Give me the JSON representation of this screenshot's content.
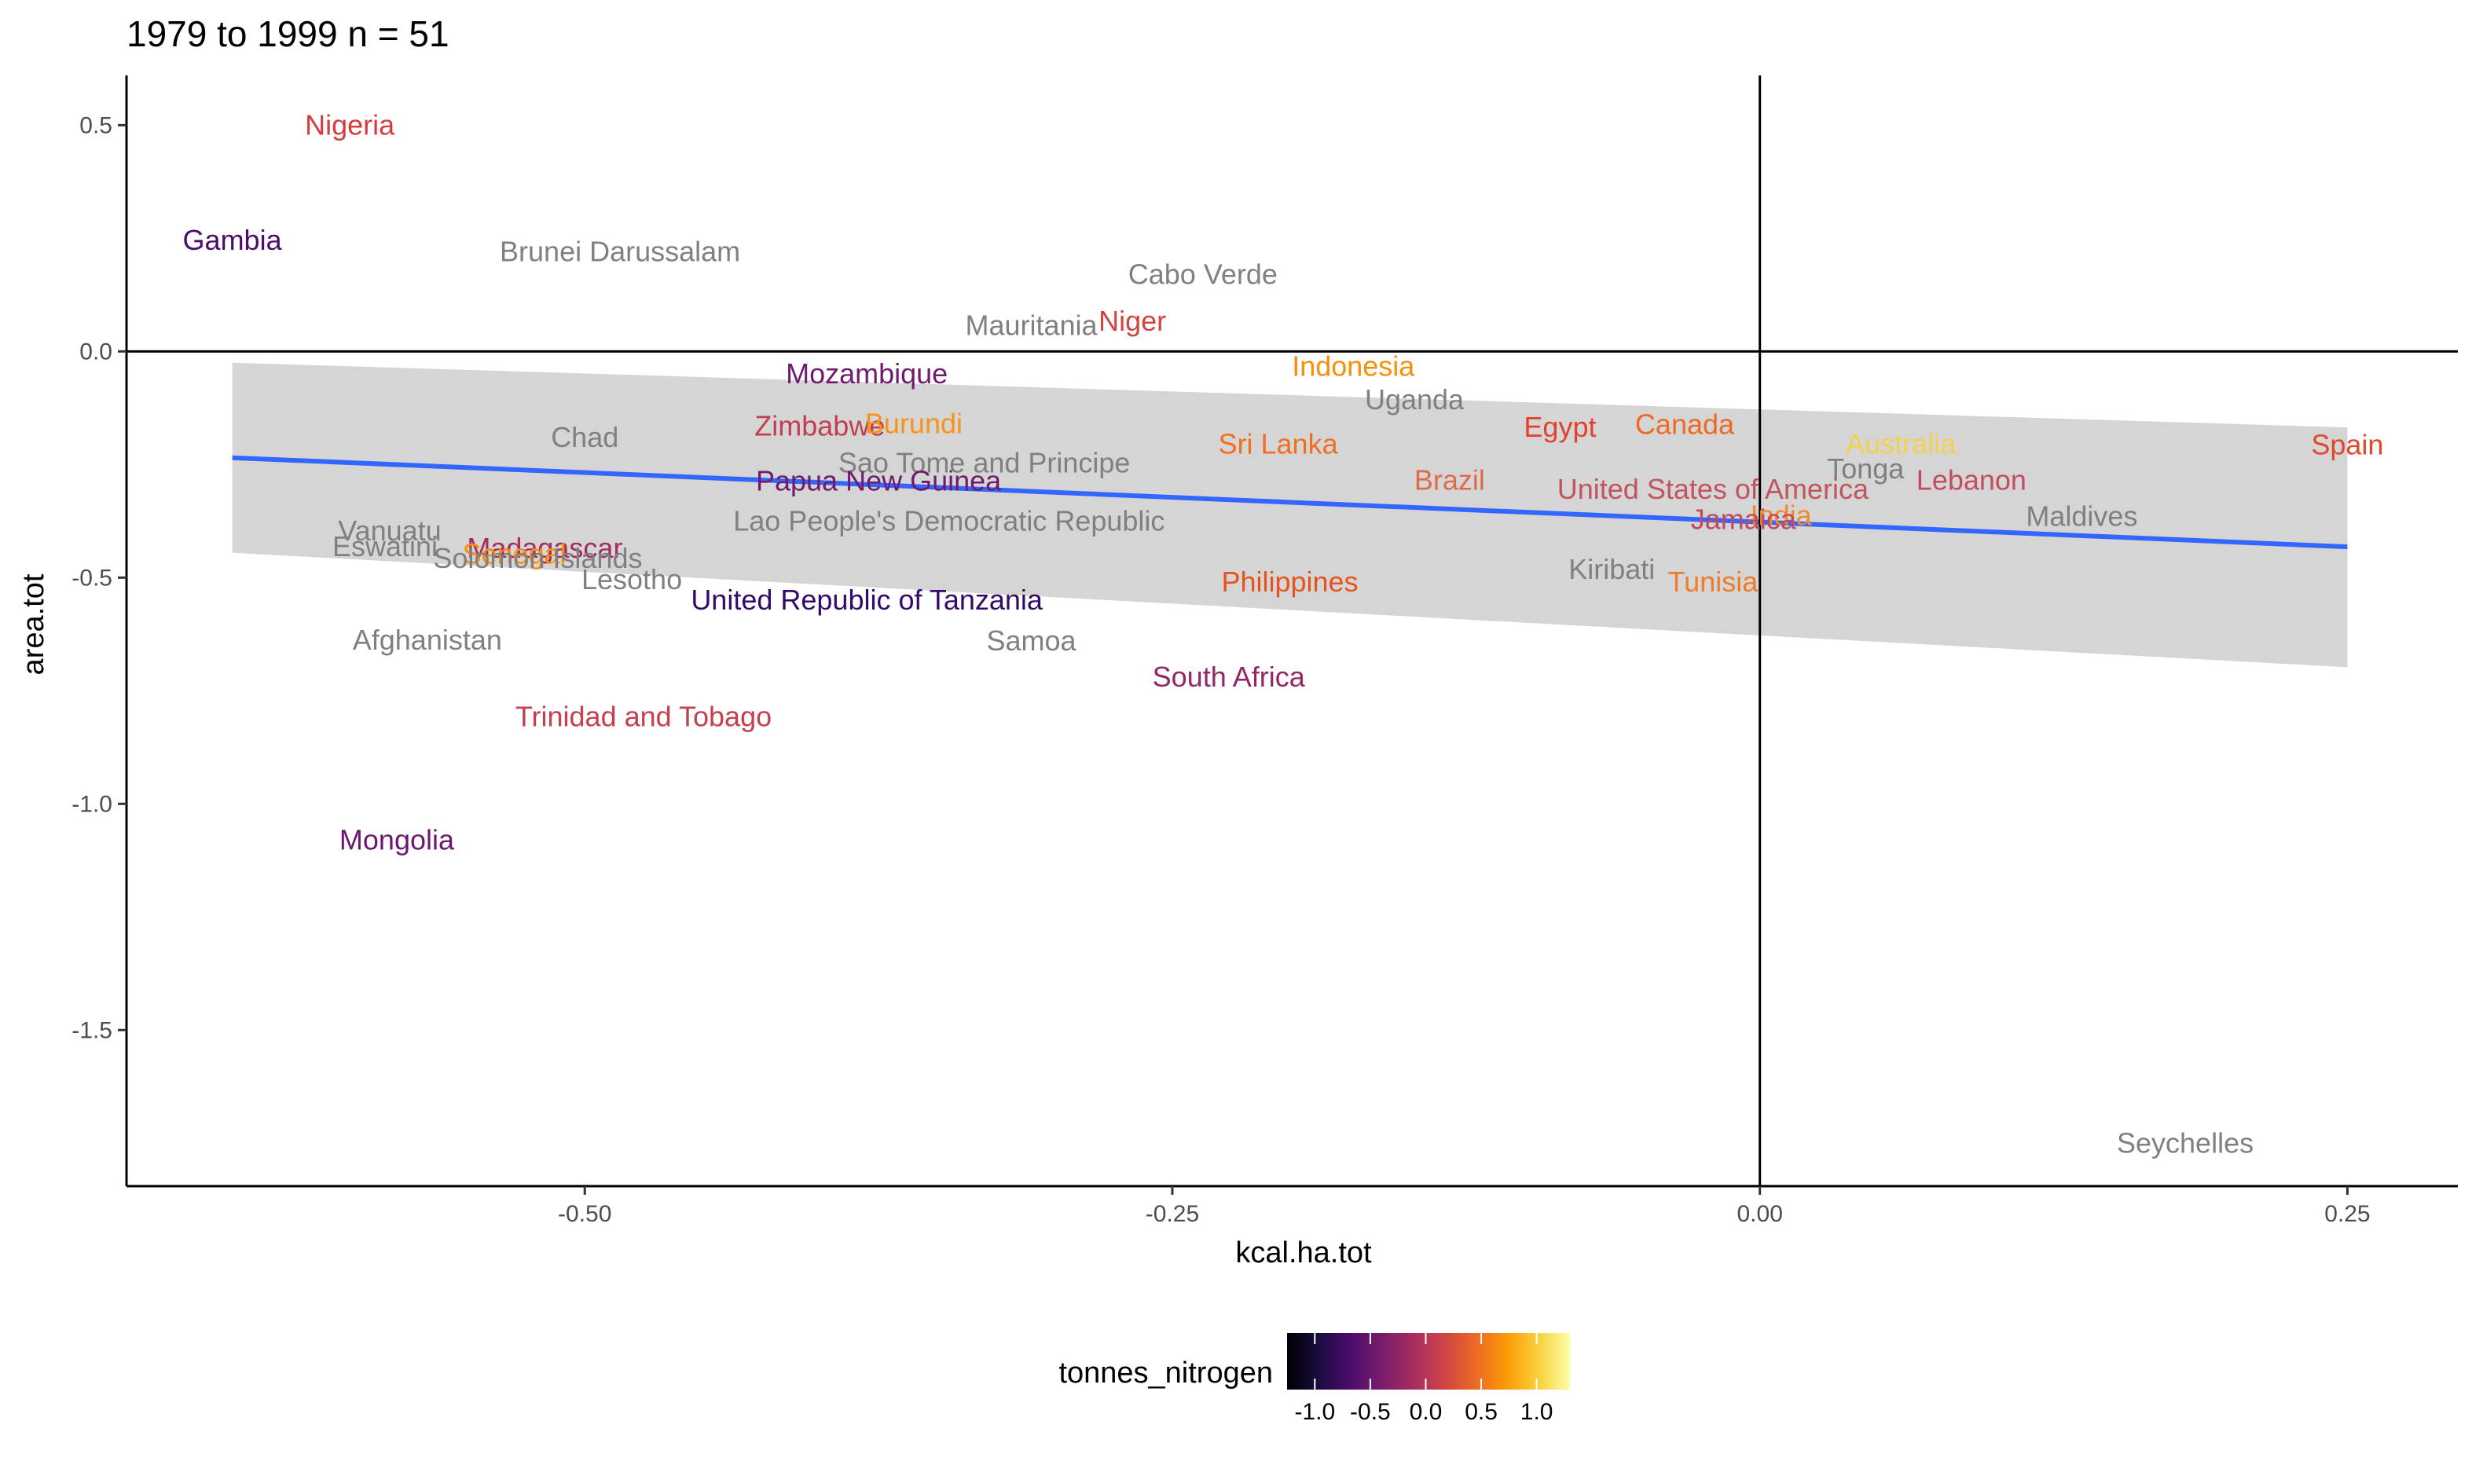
{
  "chart_data": {
    "type": "scatter",
    "title": "1979 to 1999 n =  51",
    "xlabel": "kcal.ha.tot",
    "ylabel": "area.tot",
    "xlim": [
      -0.695,
      0.297
    ],
    "ylim": [
      -1.845,
      0.61
    ],
    "x_ticks": [
      -0.5,
      -0.25,
      0.0,
      0.25
    ],
    "x_tick_labels": [
      "-0.50",
      "-0.25",
      "0.00",
      "0.25"
    ],
    "y_ticks": [
      0.5,
      0.0,
      -0.5,
      -1.0,
      -1.5
    ],
    "y_tick_labels": [
      "0.5",
      "0.0",
      "-0.5",
      "-1.0",
      "-1.5"
    ],
    "reference_lines": {
      "x": 0,
      "y": 0
    },
    "grid": false,
    "smooth": {
      "method": "linear",
      "color": "#3366FF",
      "x": [
        -0.65,
        0.25
      ],
      "y": [
        -0.235,
        -0.432
      ],
      "ci_lower": [
        -0.445,
        -0.698
      ],
      "ci_upper": [
        -0.025,
        -0.168
      ],
      "ci_color": "#d3d3d3"
    },
    "color_legend": {
      "title": "tonnes_nitrogen",
      "position": "bottom",
      "range": [
        -1.25,
        1.3
      ],
      "ticks": [
        -1.0,
        -0.5,
        0.0,
        0.5,
        1.0
      ],
      "tick_labels": [
        "-1.0",
        "-0.5",
        "0.0",
        "0.5",
        "1.0"
      ],
      "colors": [
        "#000004",
        "#1b0c41",
        "#4a0c6b",
        "#781c6d",
        "#a52c60",
        "#cf4446",
        "#ed6925",
        "#fb9b06",
        "#f7d13d",
        "#fcffa4"
      ]
    },
    "na_color": "#808080",
    "points": [
      {
        "label": "Nigeria",
        "x": -0.6,
        "y": 0.5,
        "color": "#d63c3c"
      },
      {
        "label": "Gambia",
        "x": -0.65,
        "y": 0.245,
        "color": "#4b0c6b"
      },
      {
        "label": "Brunei Darussalam",
        "x": -0.485,
        "y": 0.22,
        "color": "#808080"
      },
      {
        "label": "Cabo Verde",
        "x": -0.237,
        "y": 0.17,
        "color": "#808080"
      },
      {
        "label": "Mauritania",
        "x": -0.31,
        "y": 0.057,
        "color": "#808080"
      },
      {
        "label": "Niger",
        "x": -0.267,
        "y": 0.067,
        "color": "#d2443f"
      },
      {
        "label": "Mozambique",
        "x": -0.38,
        "y": -0.05,
        "color": "#711a6e"
      },
      {
        "label": "Indonesia",
        "x": -0.173,
        "y": -0.033,
        "color": "#f98e09"
      },
      {
        "label": "Uganda",
        "x": -0.147,
        "y": -0.107,
        "color": "#808080"
      },
      {
        "label": "Chad",
        "x": -0.5,
        "y": -0.19,
        "color": "#808080"
      },
      {
        "label": "Zimbabwe",
        "x": -0.4,
        "y": -0.165,
        "color": "#c13d50"
      },
      {
        "label": "Burundi",
        "x": -0.36,
        "y": -0.16,
        "color": "#f79316"
      },
      {
        "label": "Egypt",
        "x": -0.085,
        "y": -0.168,
        "color": "#e1412d"
      },
      {
        "label": "Canada",
        "x": -0.032,
        "y": -0.162,
        "color": "#ee6a24"
      },
      {
        "label": "Sri Lanka",
        "x": -0.205,
        "y": -0.205,
        "color": "#f26e21"
      },
      {
        "label": "Australia",
        "x": 0.06,
        "y": -0.205,
        "color": "#f1d14d"
      },
      {
        "label": "Spain",
        "x": 0.25,
        "y": -0.207,
        "color": "#e0492c"
      },
      {
        "label": "Sao Tome and Principe",
        "x": -0.33,
        "y": -0.247,
        "color": "#808080"
      },
      {
        "label": "Tonga",
        "x": 0.045,
        "y": -0.26,
        "color": "#808080"
      },
      {
        "label": "Lebanon",
        "x": 0.09,
        "y": -0.285,
        "color": "#c44c5e"
      },
      {
        "label": "Brazil",
        "x": -0.132,
        "y": -0.285,
        "color": "#de6a4a"
      },
      {
        "label": "Papua New Guinea",
        "x": -0.375,
        "y": -0.287,
        "color": "#711a6e"
      },
      {
        "label": "United States of America",
        "x": -0.02,
        "y": -0.305,
        "color": "#c1555f"
      },
      {
        "label": "Lao People's Democratic Republic",
        "x": -0.345,
        "y": -0.375,
        "color": "#808080"
      },
      {
        "label": "Maldives",
        "x": 0.137,
        "y": -0.365,
        "color": "#808080"
      },
      {
        "label": "India",
        "x": 0.009,
        "y": -0.363,
        "color": "#f18a2e"
      },
      {
        "label": "Jamaica",
        "x": -0.007,
        "y": -0.372,
        "color": "#c3495d"
      },
      {
        "label": "Vanuatu",
        "x": -0.583,
        "y": -0.397,
        "color": "#808080"
      },
      {
        "label": "Eswatini",
        "x": -0.585,
        "y": -0.432,
        "color": "#808080"
      },
      {
        "label": "Madagascar",
        "x": -0.517,
        "y": -0.435,
        "color": "#a52c60"
      },
      {
        "label": "Senegal",
        "x": -0.53,
        "y": -0.448,
        "color": "#f98e09"
      },
      {
        "label": "Solomon Islands",
        "x": -0.52,
        "y": -0.458,
        "color": "#808080"
      },
      {
        "label": "Lesotho",
        "x": -0.48,
        "y": -0.505,
        "color": "#808080"
      },
      {
        "label": "Kiribati",
        "x": -0.063,
        "y": -0.482,
        "color": "#808080"
      },
      {
        "label": "Philippines",
        "x": -0.2,
        "y": -0.51,
        "color": "#e5541e"
      },
      {
        "label": "Tunisia",
        "x": -0.02,
        "y": -0.51,
        "color": "#ef7c2a"
      },
      {
        "label": "United Republic of Tanzania",
        "x": -0.38,
        "y": -0.55,
        "color": "#35096a"
      },
      {
        "label": "Afghanistan",
        "x": -0.567,
        "y": -0.638,
        "color": "#808080"
      },
      {
        "label": "Samoa",
        "x": -0.31,
        "y": -0.64,
        "color": "#808080"
      },
      {
        "label": "South Africa",
        "x": -0.226,
        "y": -0.72,
        "color": "#932667"
      },
      {
        "label": "Trinidad and Tobago",
        "x": -0.475,
        "y": -0.808,
        "color": "#c73e4c"
      },
      {
        "label": "Mongolia",
        "x": -0.58,
        "y": -1.08,
        "color": "#6b186e"
      },
      {
        "label": "Seychelles",
        "x": 0.181,
        "y": -1.75,
        "color": "#808080"
      }
    ]
  }
}
